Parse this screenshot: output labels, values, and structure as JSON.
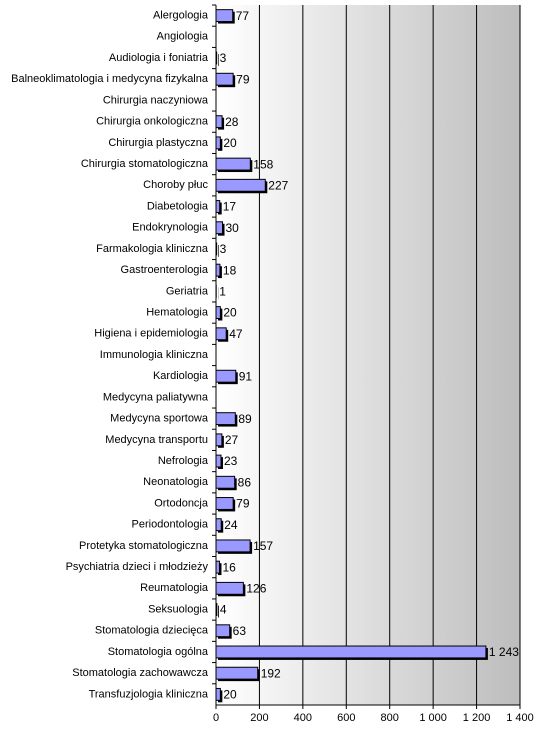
{
  "chart_data": {
    "type": "bar",
    "orientation": "horizontal",
    "categories": [
      "Alergologia",
      "Angiologia",
      "Audiologia i foniatria",
      "Balneoklimatologia i medycyna fizykalna",
      "Chirurgia naczyniowa",
      "Chirurgia onkologiczna",
      "Chirurgia plastyczna",
      "Chirurgia stomatologiczna",
      "Choroby płuc",
      "Diabetologia",
      "Endokrynologia",
      "Farmakologia kliniczna",
      "Gastroenterologia",
      "Geriatria",
      "Hematologia",
      "Higiena i epidemiologia",
      "Immunologia kliniczna",
      "Kardiologia",
      "Medycyna paliatywna",
      "Medycyna sportowa",
      "Medycyna transportu",
      "Nefrologia",
      "Neonatologia",
      "Ortodoncja",
      "Periodontologia",
      "Protetyka stomatologiczna",
      "Psychiatria dzieci i młodzieży",
      "Reumatologia",
      "Seksuologia",
      "Stomatologia dziecięca",
      "Stomatologia ogólna",
      "Stomatologia zachowawcza",
      "Transfuzjologia kliniczna"
    ],
    "values": [
      77,
      null,
      3,
      79,
      null,
      28,
      20,
      158,
      227,
      17,
      30,
      3,
      18,
      1,
      20,
      47,
      null,
      91,
      null,
      89,
      27,
      23,
      86,
      79,
      24,
      157,
      16,
      126,
      4,
      63,
      1243,
      192,
      20
    ],
    "value_labels": [
      "77",
      null,
      "3",
      "79",
      null,
      "28",
      "20",
      "158",
      "227",
      "17",
      "30",
      "3",
      "18",
      "1",
      "20",
      "47",
      null,
      "91",
      null,
      "89",
      "27",
      "23",
      "86",
      "79",
      "24",
      "157",
      "16",
      "126",
      "4",
      "63",
      "1 243",
      "192",
      "20"
    ],
    "color": "#9999ff",
    "xlim": [
      0,
      1400
    ],
    "xticks": [
      0,
      200,
      400,
      600,
      800,
      {
        "value": 1000,
        "label": "1 000"
      },
      {
        "value": 1200,
        "label": "1 200"
      },
      {
        "value": 1400,
        "label": "1 400"
      }
    ],
    "grid": true
  }
}
